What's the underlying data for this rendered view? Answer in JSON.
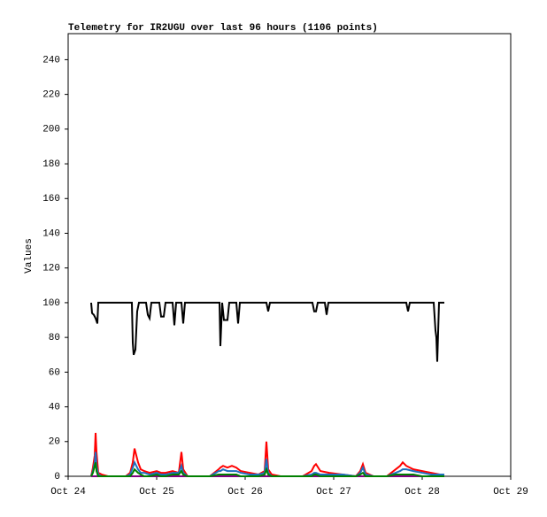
{
  "chart_data": {
    "type": "line",
    "title": "Telemetry for IR2UGU over last 96 hours (1106 points)",
    "y_label": "Values",
    "xlim": [
      0,
      5
    ],
    "xticks": [
      {
        "value": 0,
        "label": "Oct 24"
      },
      {
        "value": 1,
        "label": "Oct 25"
      },
      {
        "value": 2,
        "label": "Oct 26"
      },
      {
        "value": 3,
        "label": "Oct 27"
      },
      {
        "value": 4,
        "label": "Oct 28"
      },
      {
        "value": 5,
        "label": "Oct 29"
      }
    ],
    "ylim": [
      0,
      255
    ],
    "yticks": [
      0,
      20,
      40,
      60,
      80,
      100,
      120,
      140,
      160,
      180,
      200,
      220,
      240
    ],
    "series": [
      {
        "color": "#800080",
        "x": [
          0.26,
          4.25
        ],
        "values": [
          0,
          0
        ]
      },
      {
        "color": "#ff0000",
        "x": [
          0.26,
          0.28,
          0.3,
          0.31,
          0.32,
          0.34,
          0.38,
          0.45,
          0.55,
          0.65,
          0.7,
          0.73,
          0.75,
          0.77,
          0.79,
          0.82,
          0.86,
          0.92,
          1.0,
          1.05,
          1.1,
          1.18,
          1.25,
          1.28,
          1.3,
          1.35,
          1.45,
          1.6,
          1.7,
          1.72,
          1.75,
          1.8,
          1.85,
          1.9,
          1.95,
          2.05,
          2.15,
          2.22,
          2.24,
          2.26,
          2.3,
          2.4,
          2.55,
          2.65,
          2.75,
          2.78,
          2.8,
          2.85,
          2.95,
          3.1,
          3.25,
          3.3,
          3.33,
          3.36,
          3.45,
          3.6,
          3.7,
          3.75,
          3.78,
          3.82,
          3.9,
          4.0,
          4.1,
          4.2,
          4.25
        ],
        "values": [
          0,
          5,
          12,
          25,
          14,
          2,
          1,
          0,
          0,
          0,
          2,
          8,
          16,
          12,
          8,
          4,
          3,
          2,
          3,
          2,
          2,
          3,
          2,
          14,
          4,
          0,
          0,
          0,
          4,
          5,
          6,
          5,
          6,
          5,
          3,
          2,
          1,
          3,
          20,
          4,
          1,
          0,
          0,
          0,
          3,
          6,
          7,
          3,
          2,
          1,
          0,
          3,
          7,
          2,
          0,
          0,
          4,
          6,
          8,
          6,
          4,
          3,
          2,
          1,
          1
        ]
      },
      {
        "color": "#1f6fbf",
        "x": [
          0.26,
          0.28,
          0.3,
          0.31,
          0.32,
          0.34,
          0.38,
          0.45,
          0.55,
          0.65,
          0.7,
          0.73,
          0.75,
          0.77,
          0.79,
          0.82,
          0.86,
          0.92,
          1.0,
          1.05,
          1.1,
          1.18,
          1.25,
          1.28,
          1.3,
          1.35,
          1.45,
          1.6,
          1.7,
          1.72,
          1.75,
          1.8,
          1.85,
          1.9,
          1.95,
          2.05,
          2.15,
          2.22,
          2.24,
          2.26,
          2.3,
          2.4,
          2.55,
          2.65,
          2.75,
          2.78,
          2.8,
          2.85,
          2.95,
          3.1,
          3.25,
          3.3,
          3.33,
          3.36,
          3.45,
          3.6,
          3.7,
          3.75,
          3.78,
          3.82,
          3.9,
          4.0,
          4.1,
          4.2,
          4.25
        ],
        "values": [
          0,
          3,
          8,
          14,
          6,
          1,
          0,
          0,
          0,
          0,
          1,
          5,
          8,
          6,
          4,
          2,
          2,
          1,
          2,
          1,
          1,
          2,
          2,
          6,
          2,
          0,
          0,
          0,
          3,
          3,
          4,
          3,
          3,
          3,
          2,
          1,
          1,
          2,
          10,
          2,
          0,
          0,
          0,
          0,
          1,
          2,
          2,
          1,
          1,
          1,
          0,
          2,
          5,
          1,
          0,
          0,
          2,
          3,
          4,
          4,
          3,
          2,
          1,
          1,
          1
        ]
      },
      {
        "color": "#008000",
        "x": [
          0.26,
          0.28,
          0.3,
          0.31,
          0.32,
          0.34,
          0.38,
          0.45,
          0.55,
          0.65,
          0.7,
          0.73,
          0.75,
          0.77,
          0.79,
          0.82,
          0.86,
          0.92,
          1.0,
          1.05,
          1.1,
          1.18,
          1.25,
          1.28,
          1.3,
          1.35,
          1.45,
          1.6,
          1.7,
          1.72,
          1.75,
          1.8,
          1.85,
          1.9,
          1.95,
          2.05,
          2.15,
          2.22,
          2.24,
          2.26,
          2.3,
          2.4,
          2.55,
          2.65,
          2.75,
          2.78,
          2.8,
          2.85,
          2.95,
          3.1,
          3.25,
          3.3,
          3.33,
          3.36,
          3.45,
          3.6,
          3.7,
          3.75,
          3.78,
          3.82,
          3.9,
          4.0,
          4.1,
          4.2,
          4.25
        ],
        "values": [
          0,
          2,
          6,
          8,
          3,
          0,
          0,
          0,
          0,
          0,
          0,
          2,
          4,
          3,
          2,
          1,
          0,
          0,
          1,
          0,
          0,
          1,
          1,
          3,
          1,
          0,
          0,
          0,
          1,
          1,
          1,
          1,
          1,
          1,
          0,
          0,
          0,
          1,
          4,
          1,
          0,
          0,
          0,
          0,
          0,
          1,
          1,
          0,
          0,
          0,
          0,
          1,
          2,
          0,
          0,
          0,
          1,
          1,
          1,
          1,
          1,
          0,
          0,
          0,
          0
        ]
      },
      {
        "color": "#000000",
        "x": [
          0.26,
          0.27,
          0.29,
          0.31,
          0.33,
          0.34,
          0.72,
          0.73,
          0.74,
          0.76,
          0.78,
          0.8,
          0.88,
          0.9,
          0.92,
          0.94,
          1.03,
          1.05,
          1.08,
          1.1,
          1.18,
          1.2,
          1.22,
          1.28,
          1.3,
          1.32,
          1.71,
          1.72,
          1.74,
          1.76,
          1.8,
          1.82,
          1.9,
          1.92,
          1.94,
          2.24,
          2.26,
          2.28,
          2.76,
          2.78,
          2.8,
          2.82,
          2.9,
          2.92,
          2.94,
          3.82,
          3.84,
          3.86,
          4.13,
          4.15,
          4.16,
          4.17,
          4.19,
          4.25
        ],
        "values": [
          100,
          94,
          93,
          91,
          88,
          100,
          100,
          77,
          70,
          73,
          95,
          100,
          100,
          93,
          91,
          100,
          100,
          92,
          92,
          100,
          100,
          87,
          100,
          100,
          88,
          100,
          100,
          75,
          100,
          90,
          90,
          100,
          100,
          88,
          100,
          100,
          95,
          100,
          100,
          95,
          95,
          100,
          100,
          93,
          100,
          100,
          95,
          100,
          100,
          84,
          80,
          66,
          100,
          100
        ]
      }
    ]
  }
}
